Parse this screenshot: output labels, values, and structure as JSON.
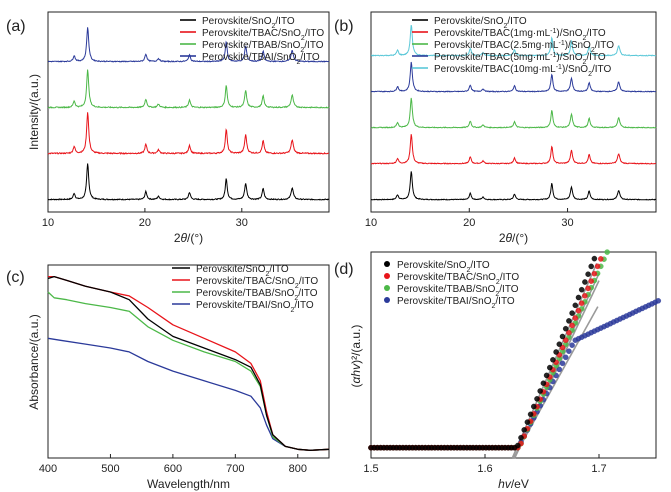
{
  "chart_data": [
    {
      "id": "a",
      "panel_label": "(a)",
      "type": "line",
      "xlabel_main": "2",
      "xlabel_italic": "θ",
      "xlabel_unit": "/(°)",
      "ylabel": "Intensity/(a.u.)",
      "xlim": [
        10,
        39
      ],
      "xticks": [
        10,
        20,
        30
      ],
      "peaks": [
        {
          "x": 12.7,
          "w": 0.12,
          "h": 0.15
        },
        {
          "x": 14.1,
          "w": 0.13,
          "h": 1.0
        },
        {
          "x": 20.1,
          "w": 0.12,
          "h": 0.22
        },
        {
          "x": 21.4,
          "w": 0.14,
          "h": 0.08
        },
        {
          "x": 24.6,
          "w": 0.12,
          "h": 0.18
        },
        {
          "x": 28.4,
          "w": 0.12,
          "h": 0.55
        },
        {
          "x": 30.4,
          "w": 0.13,
          "h": 0.42
        },
        {
          "x": 32.2,
          "w": 0.12,
          "h": 0.3
        },
        {
          "x": 35.2,
          "w": 0.14,
          "h": 0.32
        }
      ],
      "series": [
        {
          "name_parts": [
            "Perovskite/SnO",
            "2",
            "/ITO"
          ],
          "color": "#000000",
          "scale": 1.0
        },
        {
          "name_parts": [
            "Perovskite/TBAC/SnO",
            "2",
            "/ITO"
          ],
          "color": "#e8141a",
          "scale": 1.15
        },
        {
          "name_parts": [
            "Perovskite/TBAB/SnO",
            "2",
            "/ITO"
          ],
          "color": "#4cb848",
          "scale": 1.05
        },
        {
          "name_parts": [
            "Perovskite/TBAI/SnO",
            "2",
            "/ITO"
          ],
          "color": "#2b3a9a",
          "scale": 0.95
        }
      ]
    },
    {
      "id": "b",
      "panel_label": "(b)",
      "type": "line",
      "xlabel_main": "2",
      "xlabel_italic": "θ",
      "xlabel_unit": "/(°)",
      "ylabel": "",
      "xlim": [
        10,
        39
      ],
      "xticks": [
        10,
        20,
        30
      ],
      "peaks": [
        {
          "x": 12.7,
          "w": 0.12,
          "h": 0.15
        },
        {
          "x": 14.1,
          "w": 0.13,
          "h": 1.0
        },
        {
          "x": 20.1,
          "w": 0.12,
          "h": 0.22
        },
        {
          "x": 21.4,
          "w": 0.14,
          "h": 0.08
        },
        {
          "x": 24.6,
          "w": 0.12,
          "h": 0.18
        },
        {
          "x": 28.4,
          "w": 0.12,
          "h": 0.55
        },
        {
          "x": 30.4,
          "w": 0.13,
          "h": 0.42
        },
        {
          "x": 32.2,
          "w": 0.12,
          "h": 0.3
        },
        {
          "x": 35.2,
          "w": 0.14,
          "h": 0.32
        }
      ],
      "series": [
        {
          "name_parts": [
            "Perovskite/SnO",
            "2",
            "/ITO"
          ],
          "color": "#000000",
          "scale": 1.0
        },
        {
          "name_parts": [
            "Perovskite/TBAC(1mg·mL",
            "-1",
            ")/SnO",
            "2",
            "/ITO"
          ],
          "color": "#e8141a",
          "scale": 1.05
        },
        {
          "name_parts": [
            "Perovskite/TBAC(2.5mg·mL",
            "-1",
            ")/SnO",
            "2",
            "/ITO"
          ],
          "color": "#4cb848",
          "scale": 1.05
        },
        {
          "name_parts": [
            "Perovskite/TBAC(5mg·mL",
            "-1",
            ")/SnO",
            "2",
            "/ITO"
          ],
          "color": "#2b3a9a",
          "scale": 1.05
        },
        {
          "name_parts": [
            "Perovskite/TBAC(10mg·mL",
            "-1",
            ")/SnO",
            "2",
            "/ITO"
          ],
          "color": "#5bc8d8",
          "scale": 1.1
        }
      ]
    },
    {
      "id": "c",
      "panel_label": "(c)",
      "type": "line",
      "xlabel": "Wavelength/nm",
      "ylabel": "Absorbance/(a.u.)",
      "xlim": [
        400,
        850
      ],
      "ylim": [
        0,
        1.0
      ],
      "xticks": [
        400,
        500,
        600,
        700,
        800
      ],
      "series": [
        {
          "name_parts": [
            "Perovskite/SnO",
            "2",
            "/ITO"
          ],
          "color": "#000000",
          "points": [
            [
              400,
              0.93
            ],
            [
              410,
              0.94
            ],
            [
              430,
              0.92
            ],
            [
              460,
              0.89
            ],
            [
              500,
              0.86
            ],
            [
              530,
              0.82
            ],
            [
              560,
              0.72
            ],
            [
              600,
              0.63
            ],
            [
              650,
              0.57
            ],
            [
              700,
              0.51
            ],
            [
              725,
              0.47
            ],
            [
              740,
              0.38
            ],
            [
              750,
              0.22
            ],
            [
              760,
              0.12
            ],
            [
              780,
              0.06
            ],
            [
              800,
              0.045
            ],
            [
              820,
              0.04
            ],
            [
              850,
              0.045
            ]
          ]
        },
        {
          "name_parts": [
            "Perovskite/TBAC/SnO",
            "2",
            "/ITO"
          ],
          "color": "#e8141a",
          "points": [
            [
              400,
              0.94
            ],
            [
              410,
              0.94
            ],
            [
              430,
              0.92
            ],
            [
              460,
              0.89
            ],
            [
              500,
              0.86
            ],
            [
              530,
              0.84
            ],
            [
              560,
              0.78
            ],
            [
              600,
              0.69
            ],
            [
              650,
              0.62
            ],
            [
              700,
              0.55
            ],
            [
              725,
              0.49
            ],
            [
              740,
              0.4
            ],
            [
              750,
              0.24
            ],
            [
              760,
              0.12
            ],
            [
              780,
              0.06
            ],
            [
              800,
              0.045
            ],
            [
              820,
              0.04
            ],
            [
              850,
              0.045
            ]
          ]
        },
        {
          "name_parts": [
            "Perovskite/TBAB/SnO",
            "2",
            "/ITO"
          ],
          "color": "#4cb848",
          "points": [
            [
              400,
              0.86
            ],
            [
              410,
              0.83
            ],
            [
              430,
              0.82
            ],
            [
              460,
              0.8
            ],
            [
              500,
              0.78
            ],
            [
              530,
              0.76
            ],
            [
              560,
              0.68
            ],
            [
              600,
              0.61
            ],
            [
              650,
              0.55
            ],
            [
              700,
              0.5
            ],
            [
              725,
              0.45
            ],
            [
              740,
              0.37
            ],
            [
              750,
              0.22
            ],
            [
              760,
              0.11
            ],
            [
              780,
              0.06
            ],
            [
              800,
              0.045
            ],
            [
              820,
              0.04
            ],
            [
              850,
              0.045
            ]
          ]
        },
        {
          "name_parts": [
            "Perovskite/TBAI/SnO",
            "2",
            "/ITO"
          ],
          "color": "#2b3a9a",
          "points": [
            [
              400,
              0.62
            ],
            [
              420,
              0.61
            ],
            [
              460,
              0.59
            ],
            [
              500,
              0.57
            ],
            [
              530,
              0.55
            ],
            [
              560,
              0.5
            ],
            [
              600,
              0.45
            ],
            [
              650,
              0.4
            ],
            [
              700,
              0.35
            ],
            [
              725,
              0.32
            ],
            [
              740,
              0.26
            ],
            [
              750,
              0.17
            ],
            [
              760,
              0.1
            ],
            [
              780,
              0.06
            ],
            [
              800,
              0.045
            ],
            [
              820,
              0.04
            ],
            [
              850,
              0.045
            ]
          ]
        }
      ]
    },
    {
      "id": "d",
      "panel_label": "(d)",
      "type": "scatter",
      "xlabel_italic": "hv",
      "xlabel_unit": "/eV",
      "ylabel_pre": "(",
      "ylabel_italic": "αhv",
      "ylabel_post": ")²/(a.u.)",
      "xlim": [
        1.5,
        1.75
      ],
      "ylim": [
        0,
        1.0
      ],
      "xticks": [
        1.5,
        1.6,
        1.7
      ],
      "series": [
        {
          "name_parts": [
            "Perovskite/SnO",
            "2",
            "/ITO"
          ],
          "color": "#000000",
          "eg": 1.628,
          "k": 13.5
        },
        {
          "name_parts": [
            "Perovskite/TBAC/SnO",
            "2",
            "/ITO"
          ],
          "color": "#e8141a",
          "eg": 1.63,
          "k": 12.8
        },
        {
          "name_parts": [
            "Perovskite/TBAB/SnO",
            "2",
            "/ITO"
          ],
          "color": "#4cb848",
          "eg": 1.63,
          "k": 12.3
        },
        {
          "name_parts": [
            "Perovskite/TBAI/SnO",
            "2",
            "/ITO"
          ],
          "color": "#2b3a9a",
          "eg": 1.629,
          "k": 10.5,
          "sat": 0.57
        }
      ]
    }
  ]
}
